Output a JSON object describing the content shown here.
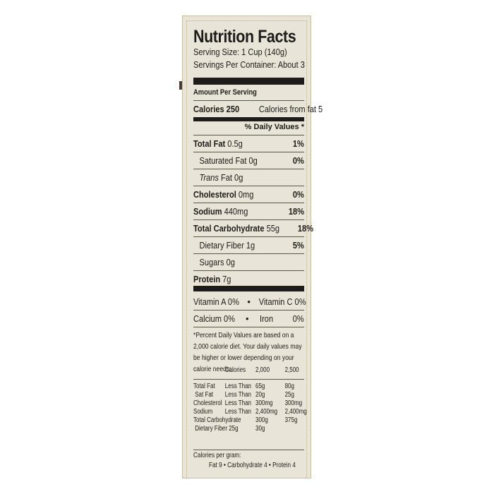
{
  "label": {
    "title": "Nutrition Facts",
    "serving_size": "Serving Size: 1 Cup (140g)",
    "servings_per_container": "Servings Per Container: About 3",
    "amount_per_serving": "Amount Per Serving",
    "calories": "Calories 250",
    "calories_from_fat": "Calories from fat 5",
    "daily_values_header": "% Daily Values *",
    "nutrients": [
      {
        "name": "Total Fat",
        "amount": "0.5g",
        "dv": "1%"
      },
      {
        "name": "Saturated Fat 0g",
        "amount": "",
        "dv": "0%"
      },
      {
        "name": "Trans",
        "amount": "Fat 0g",
        "dv": ""
      },
      {
        "name": "Cholesterol",
        "amount": "0mg",
        "dv": "0%"
      },
      {
        "name": "Sodium",
        "amount": "440mg",
        "dv": "18%"
      },
      {
        "name": "Total Carbohydrate",
        "amount": "55g",
        "dv": "18%"
      },
      {
        "name": "Dietary Fiber 1g",
        "amount": "",
        "dv": "5%"
      },
      {
        "name": "Sugars 0g",
        "amount": "",
        "dv": ""
      },
      {
        "name": "Protein",
        "amount": "7g",
        "dv": ""
      }
    ],
    "vitamins": [
      {
        "left": "Vitamin A 0%",
        "right": "Vitamin C 0%"
      },
      {
        "left": "Calcium  0%",
        "right": "Iron         0%"
      }
    ],
    "bullet": "•",
    "footnote": "*Percent Daily Values are based on a 2,000 calorie diet. Your daily values may be higher or lower depending on your calorie needs:",
    "dv_table": {
      "header": [
        "",
        "Calories",
        "2,000",
        "2,500"
      ],
      "rows": [
        [
          "Total Fat",
          "Less Than",
          "65g",
          "80g"
        ],
        [
          " Sat Fat",
          "Less Than",
          "20g",
          "25g"
        ],
        [
          "Cholesterol",
          "Less Than",
          "300mg",
          "300mg"
        ],
        [
          "Sodium",
          "Less Than",
          "2,400mg",
          "2,400mg"
        ],
        [
          "Total Carbohydrate",
          "",
          "300g",
          "375g"
        ],
        [
          " Dietary Fiber 25g",
          "",
          "30g",
          ""
        ]
      ]
    },
    "calories_per_gram": "Calories per gram:",
    "calories_per_gram_values": "Fat 9  •  Carbohydrate 4  •  Protein 4"
  }
}
